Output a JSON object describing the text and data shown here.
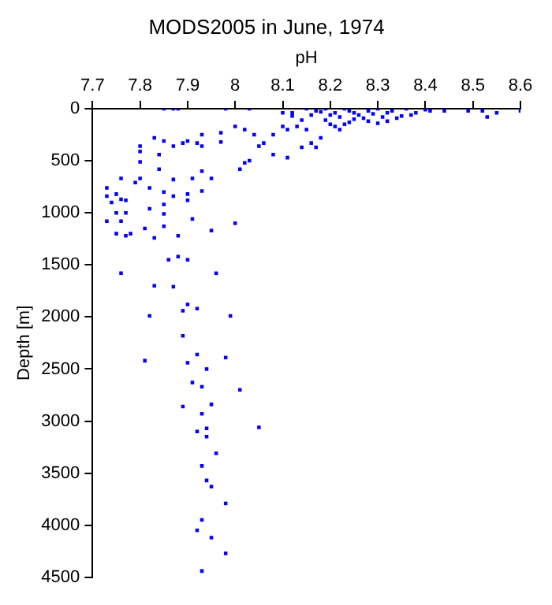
{
  "chart_data": {
    "type": "scatter",
    "title": "MODS2005 in June, 1974",
    "xlabel": "pH",
    "ylabel": "Depth [m]",
    "xlim": [
      7.7,
      8.6
    ],
    "xticks": [
      7.7,
      7.8,
      7.9,
      8,
      8.1,
      8.2,
      8.3,
      8.4,
      8.5,
      8.6
    ],
    "ylim": [
      4500,
      0
    ],
    "yticks": [
      0,
      500,
      1000,
      1500,
      2000,
      2500,
      3000,
      3500,
      4000,
      4500
    ],
    "grid": false,
    "legend": false,
    "marker": "square",
    "series": [
      {
        "color": "#0000ff",
        "x": [
          7.85,
          7.87,
          7.88,
          7.98,
          8.03,
          8.1,
          8.12,
          8.15,
          8.17,
          8.19,
          8.21,
          8.23,
          8.25,
          8.28,
          8.3,
          8.32,
          8.36,
          8.38,
          8.41,
          8.44,
          8.49,
          8.53,
          8.55,
          8.6,
          8.52,
          8.35,
          8.32,
          8.3,
          8.28,
          8.25,
          8.23,
          8.21,
          8.2,
          8.18,
          8.16,
          8.14,
          8.17,
          8.15,
          8.13,
          8.11,
          8.1,
          8.12,
          8.08,
          8.06,
          8.05,
          8.08,
          8.11,
          8.03,
          8.02,
          8.01,
          8.0,
          8.02,
          8.04,
          7.97,
          7.97,
          7.93,
          7.92,
          7.93,
          7.9,
          7.89,
          7.87,
          7.85,
          7.83,
          7.8,
          7.8,
          7.84,
          7.8,
          7.84,
          7.8,
          7.82,
          7.79,
          7.87,
          7.91,
          7.93,
          7.95,
          7.93,
          7.85,
          7.87,
          7.9,
          7.9,
          7.85,
          7.85,
          7.91,
          7.76,
          7.73,
          7.73,
          7.75,
          7.74,
          7.76,
          7.75,
          7.73,
          7.76,
          7.77,
          7.77,
          7.82,
          7.75,
          7.77,
          7.78,
          7.85,
          7.81,
          7.83,
          7.88,
          7.95,
          8.0,
          7.76,
          7.86,
          7.88,
          7.9,
          7.96,
          7.83,
          7.87,
          7.9,
          7.89,
          7.92,
          7.82,
          7.99,
          7.89,
          7.81,
          7.92,
          7.9,
          7.98,
          7.94,
          7.91,
          7.93,
          8.01,
          7.95,
          7.89,
          7.93,
          7.94,
          7.92,
          7.94,
          8.05,
          7.96,
          7.93,
          7.94,
          7.95,
          7.98,
          7.93,
          7.92,
          7.95,
          7.98,
          7.93,
          8.18,
          8.2,
          8.22,
          8.24,
          8.26,
          8.27,
          8.29,
          8.31,
          8.33,
          8.34,
          8.37,
          8.4,
          8.16,
          8.14,
          8.19,
          8.22,
          8.24
        ],
        "values": [
          0,
          0,
          0,
          0,
          0,
          40,
          40,
          0,
          20,
          0,
          40,
          0,
          40,
          20,
          0,
          40,
          0,
          40,
          20,
          20,
          20,
          80,
          40,
          20,
          20,
          70,
          120,
          140,
          120,
          100,
          150,
          170,
          150,
          280,
          330,
          370,
          370,
          200,
          170,
          200,
          170,
          70,
          250,
          330,
          360,
          440,
          470,
          500,
          520,
          580,
          170,
          200,
          250,
          230,
          320,
          250,
          330,
          360,
          310,
          330,
          360,
          310,
          280,
          360,
          410,
          440,
          510,
          580,
          670,
          760,
          710,
          680,
          670,
          600,
          670,
          790,
          800,
          840,
          820,
          880,
          920,
          1010,
          1060,
          670,
          760,
          840,
          820,
          900,
          870,
          1000,
          1080,
          1080,
          1000,
          880,
          960,
          1200,
          1220,
          1200,
          1130,
          1150,
          1240,
          1220,
          1170,
          1100,
          1580,
          1450,
          1420,
          1450,
          1580,
          1700,
          1710,
          1880,
          1940,
          1920,
          1990,
          1990,
          2180,
          2420,
          2360,
          2440,
          2390,
          2500,
          2630,
          2670,
          2700,
          2840,
          2860,
          2930,
          3070,
          3100,
          3150,
          3060,
          3310,
          3430,
          3570,
          3630,
          3790,
          3950,
          4050,
          4120,
          4270,
          4440,
          30,
          60,
          80,
          20,
          60,
          90,
          50,
          80,
          20,
          90,
          60,
          10,
          60,
          110,
          110,
          200,
          130
        ]
      }
    ]
  }
}
